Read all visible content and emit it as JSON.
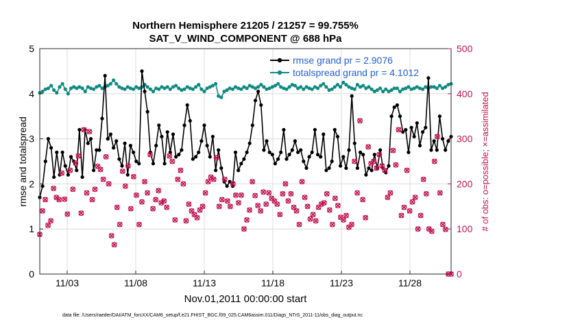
{
  "chart_data": {
    "type": "line",
    "title": "Northern Hemisphere 21205 / 21257 = 99.755%",
    "subtitle": "SAT_V_WIND_COMPONENT @ 688 hPa",
    "xlabel": "Nov.01,2011 00:00:00 start",
    "ylabel": "rmse and totalspread",
    "ylabel_right": "# of obs: o=possible; ×=assimilated",
    "ylim": [
      0,
      5
    ],
    "ylim_right": [
      0,
      500
    ],
    "xlim": [
      1,
      31
    ],
    "x_tick_labels": [
      "11/03",
      "11/08",
      "11/13",
      "11/18",
      "11/23",
      "11/28"
    ],
    "x_tick_values": [
      3,
      8,
      13,
      18,
      23,
      28
    ],
    "y_tick_labels": [
      "0",
      "1",
      "2",
      "3",
      "4",
      "5"
    ],
    "y_tick_labels_right": [
      "0",
      "100",
      "200",
      "300",
      "400",
      "500"
    ],
    "grid": true,
    "legend_position": "top-right",
    "series": [
      {
        "name": "rmse grand pr = 2.9076",
        "axis": "left",
        "color": "#000000",
        "values": [
          1.7,
          1.95,
          2.5,
          3.0,
          2.8,
          2.15,
          2.7,
          2.2,
          2.7,
          2.4,
          2.2,
          2.6,
          2.5,
          2.3,
          3.2,
          2.15,
          3.2,
          2.9,
          3.0,
          2.3,
          2.75,
          2.75,
          3.45,
          4.4,
          3.0,
          3.1,
          2.8,
          2.95,
          2.55,
          2.4,
          2.9,
          2.2,
          2.85,
          2.7,
          2.5,
          2.45,
          4.5,
          4.05,
          3.6,
          2.7,
          2.45,
          2.85,
          3.3,
          3.05,
          2.45,
          3.15,
          2.7,
          3.1,
          2.6,
          2.65,
          2.75,
          3.3,
          3.75,
          3.4,
          2.55,
          2.6,
          2.7,
          2.95,
          3.3,
          2.85,
          2.6,
          3.05,
          2.3,
          2.75,
          2.35,
          2.05,
          1.95,
          2.05,
          1.95,
          2.7,
          2.3,
          2.45,
          2.55,
          2.7,
          2.9,
          3.3,
          3.85,
          4.05,
          3.75,
          2.75,
          2.95,
          2.7,
          2.65,
          2.45,
          2.55,
          2.7,
          3.2,
          2.55,
          2.65,
          2.75,
          2.95,
          2.7,
          2.75,
          2.5,
          2.35,
          2.6,
          2.7,
          3.2,
          2.65,
          2.6,
          3.1,
          2.3,
          2.35,
          2.5,
          3.2,
          3.05,
          2.4,
          2.6,
          2.35,
          2.75,
          3.95,
          2.9,
          2.35,
          2.7,
          2.65,
          2.2,
          2.35,
          2.3,
          2.65,
          2.35,
          2.75,
          2.35,
          2.25,
          2.4,
          3.5,
          3.7,
          3.75,
          3.5,
          3.15,
          3.2,
          2.7,
          3.25,
          3.05,
          3.35,
          2.85,
          3.15,
          3.25,
          4.35,
          2.75,
          2.95,
          2.75,
          3.5,
          3.0,
          2.75,
          2.95,
          3.05
        ]
      },
      {
        "name": "totalspread grand pr = 4.1012",
        "axis": "left",
        "color": "#0f8a82",
        "values": [
          4.02,
          4.05,
          4.1,
          4.12,
          4.18,
          4.08,
          4.02,
          4.15,
          4.22,
          4.1,
          4.0,
          4.12,
          4.15,
          4.12,
          4.15,
          4.12,
          4.05,
          4.15,
          4.12,
          4.1,
          4.15,
          4.18,
          4.12,
          4.15,
          4.18,
          4.22,
          4.3,
          4.22,
          4.15,
          4.12,
          4.1,
          4.15,
          4.12,
          4.1,
          4.15,
          4.12,
          4.15,
          4.2,
          4.15,
          4.1,
          4.05,
          4.12,
          4.1,
          4.15,
          4.12,
          4.15,
          4.1,
          4.15,
          4.18,
          4.12,
          4.08,
          4.1,
          4.15,
          4.12,
          4.1,
          4.15,
          4.2,
          4.1,
          4.05,
          4.12,
          4.15,
          4.18,
          4.22,
          3.95,
          3.92,
          4.05,
          4.08,
          4.12,
          4.1,
          4.15,
          4.12,
          4.1,
          4.15,
          4.12,
          4.18,
          4.15,
          4.12,
          4.15,
          4.2,
          4.15,
          4.1,
          4.12,
          4.15,
          4.18,
          4.22,
          4.15,
          4.12,
          4.1,
          4.15,
          4.2,
          4.18,
          4.12,
          4.15,
          4.1,
          4.15,
          4.12,
          4.1,
          4.15,
          4.12,
          4.18,
          4.22,
          4.15,
          4.08,
          4.1,
          4.15,
          4.2,
          4.15,
          4.25,
          4.2,
          4.15,
          4.12,
          4.1,
          4.2,
          4.15,
          4.18,
          4.12,
          4.15,
          4.1,
          4.05,
          4.08,
          4.12,
          4.05,
          4.1,
          4.05,
          4.08,
          4.12,
          4.12,
          4.05,
          4.1,
          4.12,
          4.15,
          4.1,
          4.12,
          4.15,
          4.12,
          4.1,
          4.15,
          4.12,
          4.15,
          4.15,
          4.12,
          4.18,
          4.12,
          4.15,
          4.2,
          4.22
        ]
      },
      {
        "name": "obs assimilated",
        "axis": "right",
        "color": "#c0124f",
        "marker": "x",
        "values": [
          88,
          140,
          165,
          108,
          118,
          190,
          170,
          165,
          224,
          166,
          133,
          230,
          188,
          246,
          262,
          135,
          320,
          180,
          316,
          165,
          188,
          239,
          232,
          210,
          260,
          200,
          85,
          65,
          148,
          110,
          228,
          195,
          240,
          145,
          216,
          175,
          110,
          160,
          205,
          180,
          265,
          145,
          165,
          185,
          158,
          162,
          148,
          262,
          250,
          120,
          210,
          230,
          200,
          118,
          155,
          140,
          132,
          125,
          142,
          150,
          180,
          205,
          215,
          210,
          258,
          150,
          165,
          210,
          162,
          150,
          200,
          175,
          158,
          175,
          100,
          120,
          142,
          205,
          174,
          152,
          140,
          182,
          155,
          180,
          168,
          162,
          155,
          132,
          178,
          200,
          162,
          178,
          148,
          140,
          110,
          205,
          170,
          150,
          122,
          132,
          118,
          148,
          155,
          158,
          178,
          142,
          110,
          168,
          152,
          126,
          120,
          130,
          104,
          110,
          250,
          180,
          340,
          165,
          125,
          282,
          245,
          250,
          235,
          265,
          240,
          230,
          170,
          180,
          274,
          242,
          320,
          130,
          148,
          230,
          140,
          160,
          170,
          100,
          130,
          210,
          178,
          100,
          95,
          250,
          305,
          180,
          110,
          99,
          0,
          0
        ]
      },
      {
        "name": "obs possible",
        "axis": "right",
        "color": "#c0124f",
        "marker": "o",
        "values": [
          88,
          140,
          165,
          108,
          118,
          190,
          170,
          165,
          224,
          166,
          133,
          230,
          188,
          246,
          262,
          135,
          320,
          180,
          316,
          165,
          188,
          239,
          232,
          210,
          260,
          200,
          85,
          65,
          148,
          110,
          228,
          195,
          240,
          145,
          216,
          175,
          110,
          160,
          205,
          180,
          265,
          145,
          165,
          185,
          158,
          162,
          148,
          262,
          250,
          120,
          210,
          230,
          200,
          118,
          155,
          140,
          132,
          125,
          142,
          150,
          180,
          205,
          215,
          210,
          258,
          150,
          165,
          210,
          162,
          150,
          200,
          175,
          158,
          175,
          100,
          120,
          142,
          205,
          174,
          152,
          140,
          182,
          155,
          180,
          168,
          162,
          155,
          132,
          178,
          200,
          162,
          178,
          148,
          140,
          110,
          205,
          170,
          150,
          122,
          132,
          118,
          148,
          155,
          158,
          178,
          142,
          110,
          168,
          152,
          126,
          120,
          130,
          104,
          110,
          250,
          180,
          340,
          165,
          125,
          282,
          245,
          250,
          235,
          265,
          240,
          230,
          170,
          180,
          274,
          242,
          320,
          130,
          148,
          230,
          140,
          160,
          170,
          100,
          130,
          210,
          178,
          100,
          95,
          250,
          305,
          180,
          110,
          99,
          0,
          0
        ]
      }
    ]
  },
  "footer": "data file: /Users/raeder/DAI/ATM_forcXX/CAM6_setup/f.e21.FHIST_BGC.f09_025.CAM6assim.011/Diags_NTrS_2011-11/obs_diag_output.nc"
}
